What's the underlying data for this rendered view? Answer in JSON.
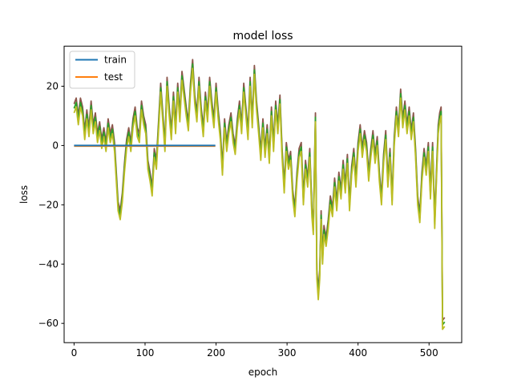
{
  "chart_data": {
    "type": "line",
    "title": "model loss",
    "xlabel": "epoch",
    "ylabel": "loss",
    "xlim": [
      -14,
      546
    ],
    "ylim": [
      -66.5,
      33.5
    ],
    "xticks": [
      0,
      100,
      200,
      300,
      400,
      500
    ],
    "yticks": [
      -60,
      -40,
      -20,
      0,
      20
    ],
    "grid": false,
    "legend": {
      "placement": "top-left",
      "entries": [
        "train",
        "test"
      ]
    },
    "colors": {
      "train": "#1f77b4",
      "test": "#ff7f0e",
      "brown": "#8c564b",
      "green": "#2ca02c",
      "olive": "#bcbd22"
    },
    "series": [
      {
        "name": "train",
        "color": "#1f77b4",
        "x": [
          0,
          199
        ],
        "y": [
          0,
          0
        ]
      },
      {
        "name": "test",
        "color": "#ff7f0e",
        "x": [
          0,
          199
        ],
        "y": [
          -0.2,
          -0.2
        ]
      },
      {
        "color": "#8c564b",
        "offset": 2.0
      },
      {
        "color": "#2ca02c",
        "offset": 0.5
      },
      {
        "color": "#bcbd22",
        "offset": -1.0,
        "points": [
          [
            0,
            11
          ],
          [
            3,
            13
          ],
          [
            6,
            7
          ],
          [
            9,
            13
          ],
          [
            12,
            10
          ],
          [
            15,
            2
          ],
          [
            18,
            9
          ],
          [
            21,
            3
          ],
          [
            24,
            12
          ],
          [
            27,
            4
          ],
          [
            30,
            8
          ],
          [
            33,
            1
          ],
          [
            36,
            5
          ],
          [
            39,
            -1
          ],
          [
            42,
            3
          ],
          [
            45,
            -2
          ],
          [
            48,
            6
          ],
          [
            51,
            1
          ],
          [
            54,
            4
          ],
          [
            57,
            -2
          ],
          [
            60,
            -14
          ],
          [
            62,
            -22
          ],
          [
            65,
            -25
          ],
          [
            68,
            -19
          ],
          [
            71,
            -9
          ],
          [
            74,
            -1
          ],
          [
            77,
            3
          ],
          [
            80,
            -2
          ],
          [
            83,
            6
          ],
          [
            86,
            10
          ],
          [
            89,
            3
          ],
          [
            92,
            1
          ],
          [
            95,
            12
          ],
          [
            98,
            7
          ],
          [
            101,
            4
          ],
          [
            104,
            -8
          ],
          [
            107,
            -12
          ],
          [
            110,
            -17
          ],
          [
            113,
            -4
          ],
          [
            116,
            -8
          ],
          [
            119,
            5
          ],
          [
            122,
            18
          ],
          [
            125,
            8
          ],
          [
            128,
            -2
          ],
          [
            131,
            20
          ],
          [
            134,
            10
          ],
          [
            137,
            2
          ],
          [
            140,
            15
          ],
          [
            143,
            4
          ],
          [
            146,
            18
          ],
          [
            149,
            8
          ],
          [
            152,
            22
          ],
          [
            155,
            16
          ],
          [
            158,
            10
          ],
          [
            161,
            5
          ],
          [
            164,
            18
          ],
          [
            167,
            26
          ],
          [
            170,
            14
          ],
          [
            173,
            8
          ],
          [
            176,
            20
          ],
          [
            179,
            10
          ],
          [
            182,
            3
          ],
          [
            185,
            15
          ],
          [
            188,
            8
          ],
          [
            191,
            20
          ],
          [
            194,
            12
          ],
          [
            197,
            6
          ],
          [
            200,
            18
          ],
          [
            203,
            9
          ],
          [
            206,
            2
          ],
          [
            209,
            -10
          ],
          [
            212,
            6
          ],
          [
            215,
            -2
          ],
          [
            218,
            4
          ],
          [
            221,
            8
          ],
          [
            224,
            1
          ],
          [
            227,
            -3
          ],
          [
            230,
            6
          ],
          [
            233,
            12
          ],
          [
            236,
            4
          ],
          [
            239,
            18
          ],
          [
            242,
            10
          ],
          [
            245,
            2
          ],
          [
            248,
            20
          ],
          [
            251,
            6
          ],
          [
            254,
            24
          ],
          [
            257,
            12
          ],
          [
            260,
            4
          ],
          [
            263,
            -5
          ],
          [
            266,
            6
          ],
          [
            269,
            -4
          ],
          [
            272,
            4
          ],
          [
            275,
            -6
          ],
          [
            278,
            10
          ],
          [
            281,
            -2
          ],
          [
            284,
            12
          ],
          [
            287,
            4
          ],
          [
            290,
            14
          ],
          [
            293,
            -4
          ],
          [
            296,
            -16
          ],
          [
            299,
            -2
          ],
          [
            302,
            -8
          ],
          [
            305,
            -5
          ],
          [
            308,
            -18
          ],
          [
            311,
            -24
          ],
          [
            314,
            -12
          ],
          [
            317,
            -4
          ],
          [
            320,
            -2
          ],
          [
            323,
            -20
          ],
          [
            326,
            -8
          ],
          [
            329,
            -14
          ],
          [
            332,
            -4
          ],
          [
            335,
            -24
          ],
          [
            337,
            -30
          ],
          [
            340,
            8
          ],
          [
            342,
            -45
          ],
          [
            344,
            -52
          ],
          [
            346,
            -45
          ],
          [
            348,
            -25
          ],
          [
            350,
            -40
          ],
          [
            352,
            -30
          ],
          [
            355,
            -34
          ],
          [
            358,
            -28
          ],
          [
            361,
            -20
          ],
          [
            364,
            -24
          ],
          [
            367,
            -14
          ],
          [
            370,
            -22
          ],
          [
            373,
            -12
          ],
          [
            376,
            -18
          ],
          [
            379,
            -8
          ],
          [
            382,
            -16
          ],
          [
            385,
            -6
          ],
          [
            388,
            -22
          ],
          [
            391,
            -10
          ],
          [
            394,
            -4
          ],
          [
            397,
            -14
          ],
          [
            400,
            -2
          ],
          [
            403,
            4
          ],
          [
            406,
            -4
          ],
          [
            409,
            2
          ],
          [
            412,
            -2
          ],
          [
            415,
            -12
          ],
          [
            418,
            -4
          ],
          [
            421,
            2
          ],
          [
            424,
            -6
          ],
          [
            427,
            0
          ],
          [
            430,
            -12
          ],
          [
            433,
            -20
          ],
          [
            436,
            -6
          ],
          [
            439,
            2
          ],
          [
            442,
            -14
          ],
          [
            445,
            -4
          ],
          [
            448,
            -20
          ],
          [
            451,
            0
          ],
          [
            454,
            10
          ],
          [
            457,
            3
          ],
          [
            460,
            16
          ],
          [
            463,
            6
          ],
          [
            466,
            12
          ],
          [
            469,
            4
          ],
          [
            472,
            10
          ],
          [
            475,
            2
          ],
          [
            478,
            8
          ],
          [
            481,
            -4
          ],
          [
            484,
            -20
          ],
          [
            487,
            -26
          ],
          [
            490,
            -12
          ],
          [
            493,
            -4
          ],
          [
            496,
            -10
          ],
          [
            499,
            -2
          ],
          [
            502,
            -18
          ],
          [
            505,
            -2
          ],
          [
            508,
            -28
          ],
          [
            511,
            -8
          ],
          [
            513,
            4
          ],
          [
            515,
            8
          ],
          [
            517,
            10
          ],
          [
            519,
            -62
          ],
          [
            522,
            -61
          ]
        ]
      }
    ]
  }
}
